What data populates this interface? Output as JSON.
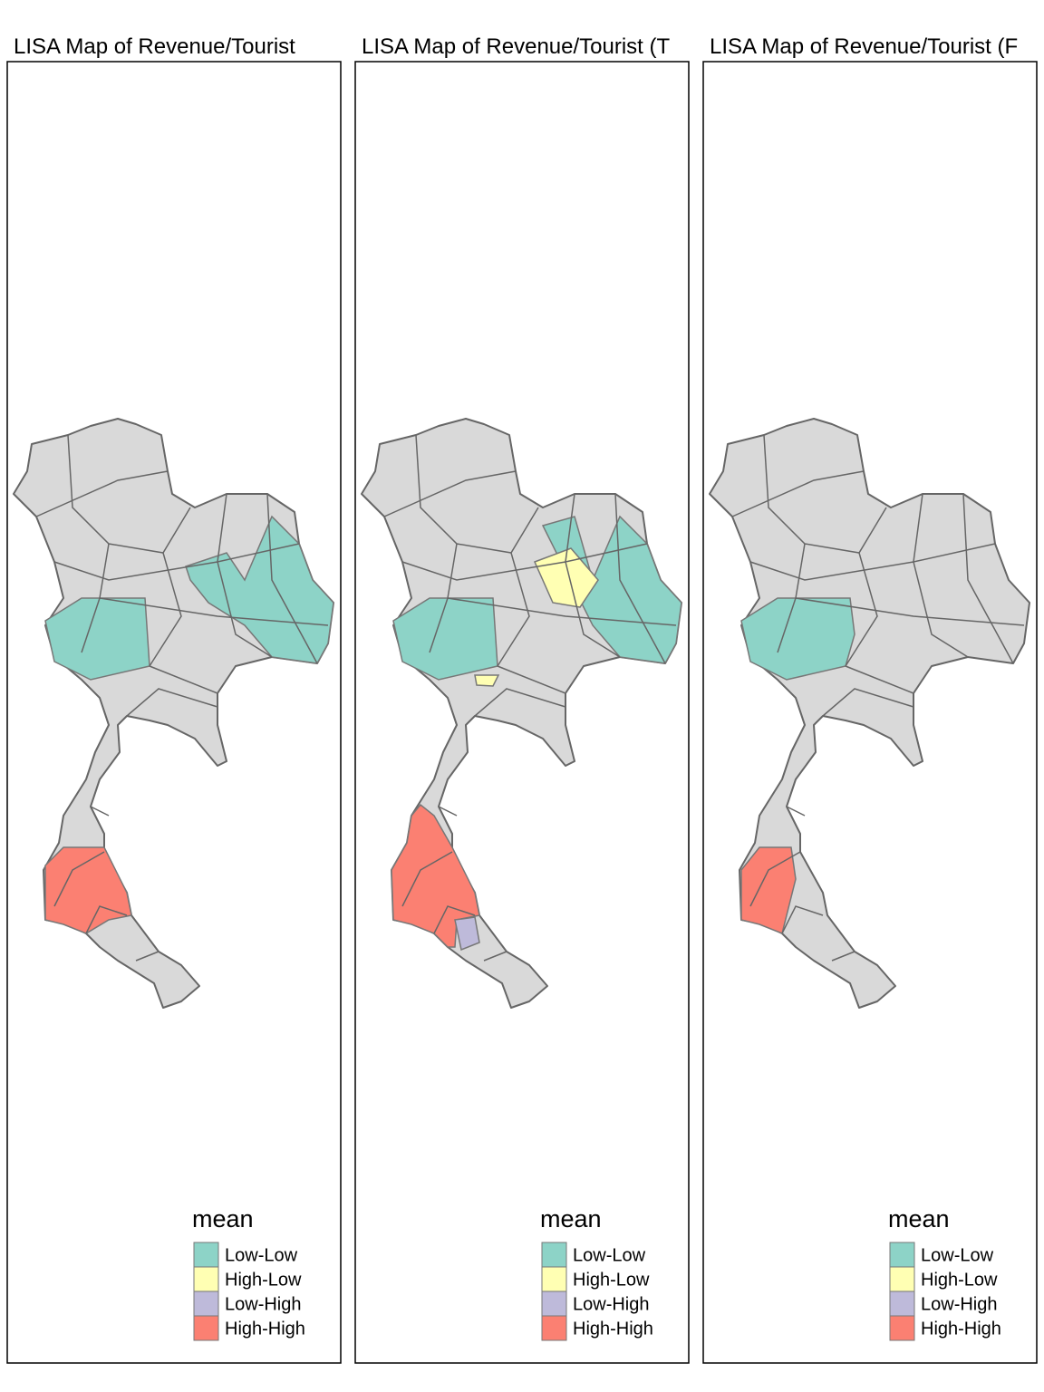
{
  "panels": [
    {
      "title": "LISA Map of Revenue/Tourist",
      "legend": {
        "title": "mean",
        "items": [
          {
            "label": "Low-Low",
            "color": "#8dd3c7"
          },
          {
            "label": "High-Low",
            "color": "#ffffb3"
          },
          {
            "label": "Low-High",
            "color": "#bebada"
          },
          {
            "label": "High-High",
            "color": "#fb8072"
          }
        ]
      }
    },
    {
      "title": "LISA Map of Revenue/Tourist (T",
      "legend": {
        "title": "mean",
        "items": [
          {
            "label": "Low-Low",
            "color": "#8dd3c7"
          },
          {
            "label": "High-Low",
            "color": "#ffffb3"
          },
          {
            "label": "Low-High",
            "color": "#bebada"
          },
          {
            "label": "High-High",
            "color": "#fb8072"
          }
        ]
      }
    },
    {
      "title": "LISA Map of Revenue/Tourist (F",
      "legend": {
        "title": "mean",
        "items": [
          {
            "label": "Low-Low",
            "color": "#8dd3c7"
          },
          {
            "label": "High-Low",
            "color": "#ffffb3"
          },
          {
            "label": "Low-High",
            "color": "#bebada"
          },
          {
            "label": "High-High",
            "color": "#fb8072"
          }
        ]
      }
    }
  ]
}
